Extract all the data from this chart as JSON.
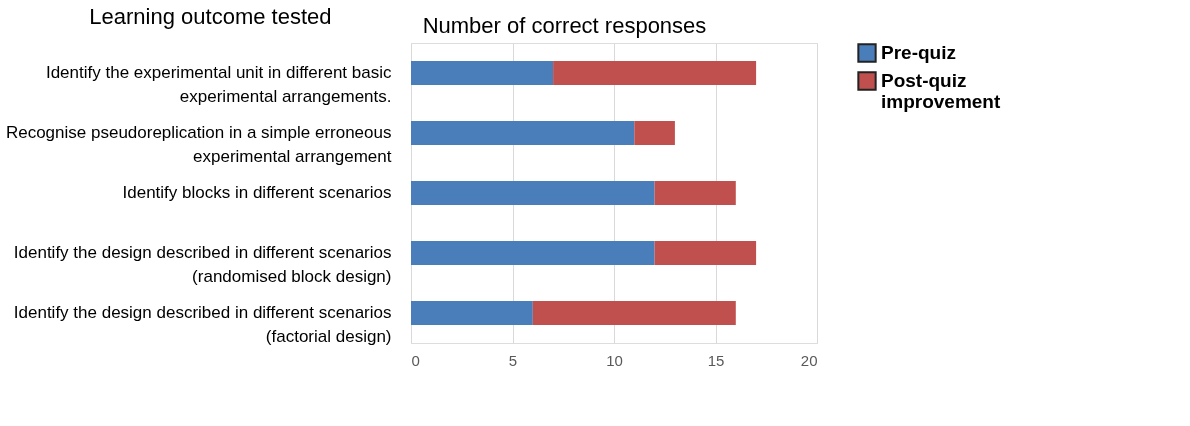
{
  "chart_data": {
    "type": "bar",
    "orientation": "horizontal",
    "stacked": true,
    "ylabel": "Learning outcome tested",
    "xlabel": "Number of correct responses",
    "categories": [
      "Identify the experimental unit in different basic\nexperimental arrangements.",
      "Recognise pseudoreplication in a simple erroneous\nexperimental arrangement",
      "Identify blocks in different scenarios",
      "Identify the design described in different scenarios\n(randomised block design)",
      "Identify the design described in different scenarios\n(factorial design)"
    ],
    "series": [
      {
        "name": "Pre-quiz",
        "color": "#4a7ebb",
        "values": [
          7,
          11,
          12,
          12,
          6
        ]
      },
      {
        "name": "Post-quiz improvement",
        "color": "#c0504d",
        "values": [
          10,
          2,
          4,
          5,
          10
        ]
      }
    ],
    "xlim": [
      0,
      20
    ],
    "xticks": [
      0,
      5,
      10,
      15,
      20
    ],
    "grid": "x",
    "legend": "right"
  }
}
